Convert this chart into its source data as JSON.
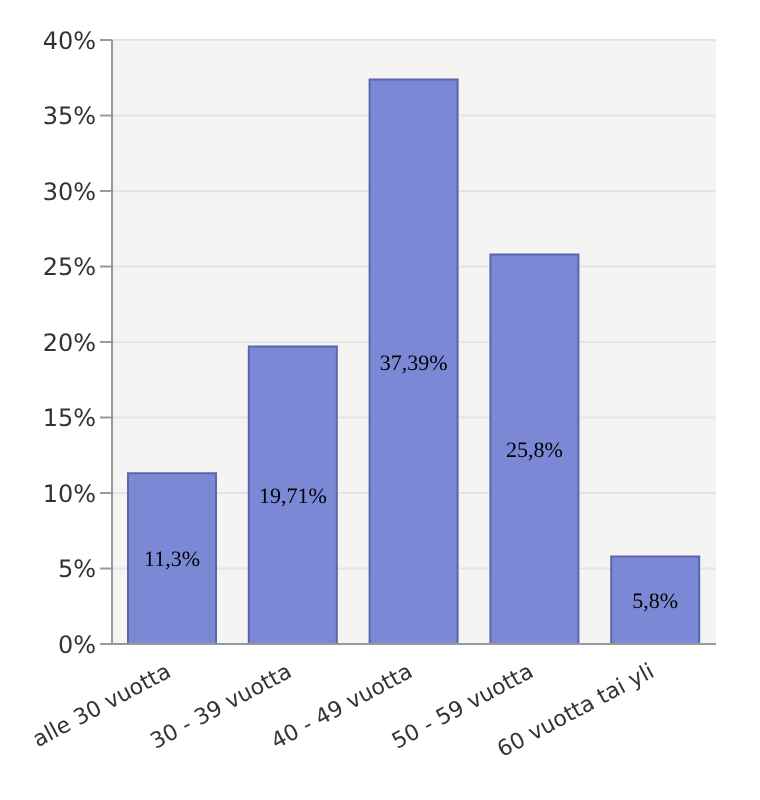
{
  "chart_data": {
    "type": "bar",
    "categories": [
      "alle 30 vuotta",
      "30 - 39 vuotta",
      "40 - 49 vuotta",
      "50 - 59 vuotta",
      "60 vuotta tai yli"
    ],
    "values": [
      11.3,
      19.71,
      37.39,
      25.8,
      5.8
    ],
    "value_labels": [
      "11,3%",
      "19,71%",
      "37,39%",
      "25,8%",
      "5,8%"
    ],
    "color": "#7b88d6",
    "ylim": [
      0,
      40
    ],
    "yticks": [
      {
        "value": 0,
        "label": "0%"
      },
      {
        "value": 5,
        "label": "5%"
      },
      {
        "value": 10,
        "label": "10%"
      },
      {
        "value": 15,
        "label": "15%"
      },
      {
        "value": 20,
        "label": "20%"
      },
      {
        "value": 25,
        "label": "25%"
      },
      {
        "value": 30,
        "label": "30%"
      },
      {
        "value": 35,
        "label": "35%"
      },
      {
        "value": 40,
        "label": "40%"
      }
    ],
    "grid": "y"
  }
}
